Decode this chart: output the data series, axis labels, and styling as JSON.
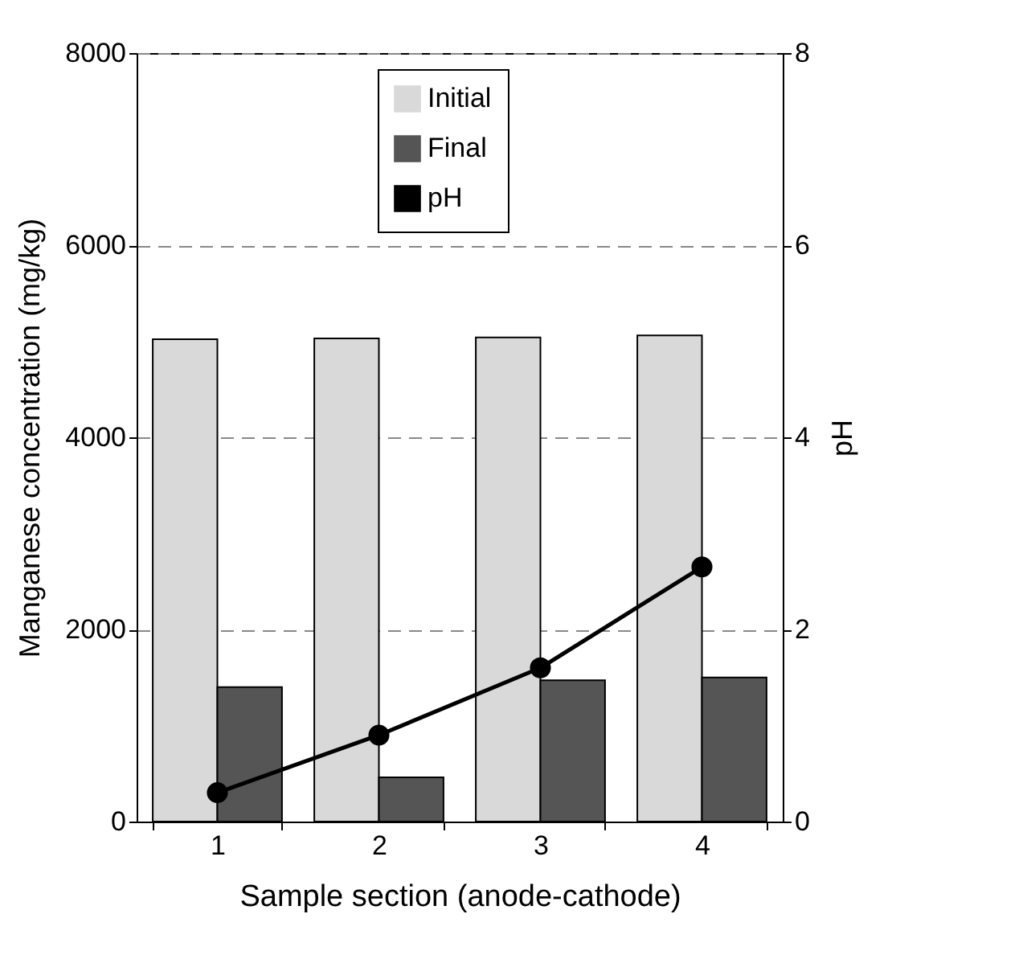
{
  "chart_data": {
    "type": "bar",
    "xlabel": "Sample section (anode-cathode)",
    "ylabel": "Manganese concentration (mg/kg)",
    "y2label": "pH",
    "categories": [
      "1",
      "2",
      "3",
      "4"
    ],
    "series": [
      {
        "name": "Initial",
        "color": "#d9d9d9",
        "values": [
          5020,
          5030,
          5040,
          5060
        ]
      },
      {
        "name": "Final",
        "color": "#555555",
        "values": [
          1400,
          460,
          1470,
          1500
        ]
      },
      {
        "name": "pH",
        "type": "line",
        "axis": "y2",
        "color": "#000000",
        "values": [
          0.3,
          0.9,
          1.6,
          2.65
        ]
      }
    ],
    "ylim": [
      0,
      8000
    ],
    "yticks": [
      0,
      2000,
      4000,
      6000,
      8000
    ],
    "y2lim": [
      0,
      8
    ],
    "y2ticks": [
      0,
      2,
      4,
      6,
      8
    ],
    "grid": "y",
    "legend": "top",
    "marker": "circle",
    "line_style": "solid"
  }
}
